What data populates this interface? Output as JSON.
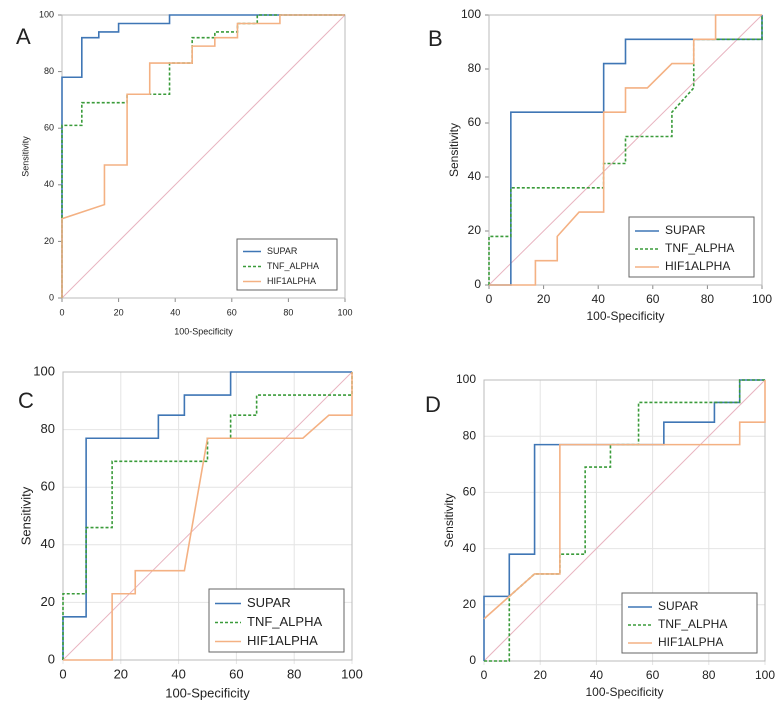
{
  "chart_data": [
    {
      "type": "line",
      "label": "A",
      "xlabel": "100-Specificity",
      "ylabel": "Sensitivity",
      "xlim": [
        0,
        100
      ],
      "ylim": [
        0,
        100
      ],
      "xticks": [
        0,
        20,
        40,
        60,
        80,
        100
      ],
      "yticks": [
        0,
        20,
        40,
        60,
        80,
        100
      ],
      "grid": false,
      "legend": "lower right",
      "series": [
        {
          "name": "SUPAR",
          "color": "#3f76b5",
          "x": [
            0,
            0,
            7,
            7,
            13,
            13,
            20,
            20,
            38,
            38,
            100
          ],
          "values": [
            0,
            78,
            78,
            92,
            92,
            94,
            94,
            97,
            97,
            100,
            100
          ]
        },
        {
          "name": "TNF_ALPHA",
          "color": "#3a9b3a",
          "line_style": "dashed",
          "x": [
            0,
            0,
            7,
            7,
            23,
            23,
            38,
            38,
            46,
            46,
            54,
            54,
            62,
            62,
            69,
            69,
            100
          ],
          "values": [
            0,
            61,
            61,
            69,
            69,
            72,
            72,
            83,
            83,
            92,
            92,
            94,
            94,
            97,
            97,
            100,
            100
          ]
        },
        {
          "name": "HIF1ALPHA",
          "color": "#f4b183",
          "x": [
            0,
            0,
            15,
            15,
            23,
            23,
            31,
            31,
            46,
            46,
            54,
            54,
            62,
            62,
            77,
            77,
            100
          ],
          "values": [
            0,
            28,
            33,
            47,
            47,
            72,
            72,
            83,
            83,
            89,
            89,
            92,
            92,
            97,
            97,
            100,
            100
          ]
        }
      ]
    },
    {
      "type": "line",
      "label": "B",
      "xlabel": "100-Specificity",
      "ylabel": "Sensitivity",
      "xlim": [
        0,
        100
      ],
      "ylim": [
        0,
        100
      ],
      "xticks": [
        0,
        20,
        40,
        60,
        80,
        100
      ],
      "yticks": [
        0,
        20,
        40,
        60,
        80,
        100
      ],
      "grid": false,
      "legend": "lower right",
      "series": [
        {
          "name": "SUPAR",
          "color": "#3f76b5",
          "x": [
            0,
            8,
            8,
            42,
            42,
            50,
            50,
            100,
            100
          ],
          "values": [
            0,
            0,
            64,
            64,
            82,
            82,
            91,
            91,
            100
          ]
        },
        {
          "name": "TNF_ALPHA",
          "color": "#3a9b3a",
          "line_style": "dashed",
          "x": [
            0,
            0,
            8,
            8,
            42,
            42,
            50,
            50,
            67,
            67,
            75,
            75,
            100,
            100
          ],
          "values": [
            0,
            18,
            18,
            36,
            36,
            45,
            45,
            55,
            55,
            64,
            73,
            91,
            91,
            100
          ]
        },
        {
          "name": "HIF1ALPHA",
          "color": "#f4b183",
          "x": [
            0,
            17,
            17,
            25,
            25,
            33,
            42,
            42,
            50,
            50,
            58,
            67,
            75,
            75,
            83,
            83,
            100
          ],
          "values": [
            0,
            0,
            9,
            9,
            18,
            27,
            27,
            64,
            64,
            73,
            73,
            82,
            82,
            91,
            91,
            100,
            100
          ]
        }
      ]
    },
    {
      "type": "line",
      "label": "C",
      "xlabel": "100-Specificity",
      "ylabel": "Sensitivity",
      "xlim": [
        0,
        100
      ],
      "ylim": [
        0,
        100
      ],
      "xticks": [
        0,
        20,
        40,
        60,
        80,
        100
      ],
      "yticks": [
        0,
        20,
        40,
        60,
        80,
        100
      ],
      "grid": true,
      "legend": "lower right",
      "series": [
        {
          "name": "SUPAR",
          "color": "#3f76b5",
          "x": [
            0,
            0,
            8,
            8,
            33,
            33,
            42,
            42,
            58,
            58,
            100
          ],
          "values": [
            0,
            15,
            15,
            77,
            77,
            85,
            85,
            92,
            92,
            100,
            100
          ]
        },
        {
          "name": "TNF_ALPHA",
          "color": "#3a9b3a",
          "line_style": "dashed",
          "x": [
            0,
            0,
            8,
            8,
            17,
            17,
            50,
            50,
            58,
            58,
            67,
            67,
            100,
            100
          ],
          "values": [
            0,
            23,
            23,
            46,
            46,
            69,
            69,
            77,
            77,
            85,
            85,
            92,
            92,
            100
          ]
        },
        {
          "name": "HIF1ALPHA",
          "color": "#f4b183",
          "x": [
            0,
            17,
            17,
            25,
            25,
            42,
            50,
            83,
            92,
            100,
            100
          ],
          "values": [
            0,
            0,
            23,
            23,
            31,
            31,
            77,
            77,
            85,
            85,
            100
          ]
        }
      ]
    },
    {
      "type": "line",
      "label": "D",
      "xlabel": "100-Specificity",
      "ylabel": "Sensitivity",
      "xlim": [
        0,
        100
      ],
      "ylim": [
        0,
        100
      ],
      "xticks": [
        0,
        20,
        40,
        60,
        80,
        100
      ],
      "yticks": [
        0,
        20,
        40,
        60,
        80,
        100
      ],
      "grid": true,
      "legend": "lower right",
      "series": [
        {
          "name": "SUPAR",
          "color": "#3f76b5",
          "x": [
            0,
            0,
            9,
            9,
            18,
            18,
            64,
            64,
            82,
            82,
            91,
            91,
            100
          ],
          "values": [
            0,
            23,
            23,
            38,
            38,
            77,
            77,
            85,
            85,
            92,
            92,
            100,
            100
          ]
        },
        {
          "name": "TNF_ALPHA",
          "color": "#3a9b3a",
          "line_style": "dashed",
          "x": [
            0,
            9,
            9,
            18,
            27,
            27,
            36,
            36,
            45,
            45,
            55,
            55,
            91,
            91,
            100
          ],
          "values": [
            0,
            0,
            23,
            31,
            31,
            38,
            38,
            69,
            69,
            77,
            77,
            92,
            92,
            100,
            100
          ]
        },
        {
          "name": "HIF1ALPHA",
          "color": "#f4b183",
          "x": [
            0,
            9,
            18,
            27,
            27,
            91,
            91,
            100,
            100
          ],
          "values": [
            15,
            23,
            31,
            31,
            77,
            77,
            85,
            85,
            100
          ]
        }
      ]
    }
  ]
}
